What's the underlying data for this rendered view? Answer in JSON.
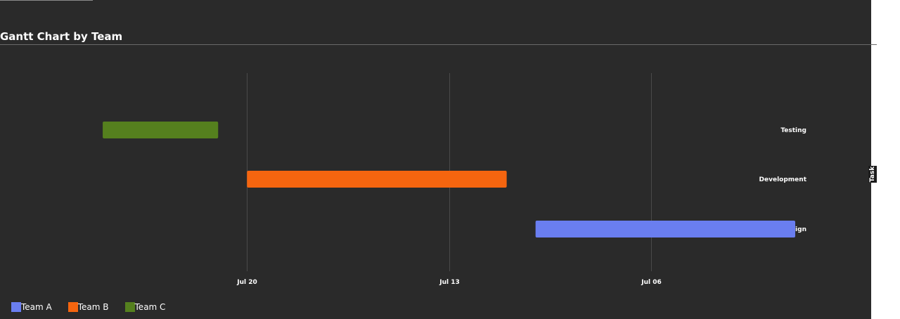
{
  "chart_data": {
    "type": "gantt",
    "title": "Gantt Chart by Team",
    "ylabel": "Task",
    "xlabel": "",
    "x_axis": "reversed-date",
    "grid": "vertical",
    "xlim": [
      "2025-07-01",
      "2025-07-27"
    ],
    "x_ticks": [
      {
        "date": "2025-07-20",
        "label": "Jul 20"
      },
      {
        "date": "2025-07-13",
        "label": "Jul 13"
      },
      {
        "date": "2025-07-06",
        "label": "Jul 06"
      }
    ],
    "categories": [
      "Testing",
      "Development",
      "Design"
    ],
    "tasks": [
      {
        "task": "Design",
        "team": "Team A",
        "start": "2025-07-01",
        "end": "2025-07-10"
      },
      {
        "task": "Development",
        "team": "Team B",
        "start": "2025-07-11",
        "end": "2025-07-20"
      },
      {
        "task": "Testing",
        "team": "Team C",
        "start": "2025-07-21",
        "end": "2025-07-25"
      }
    ],
    "legend": {
      "placement": "bottom-left",
      "entries": [
        {
          "name": "Team A",
          "color": "#6a7ef0"
        },
        {
          "name": "Team B",
          "color": "#f5650f"
        },
        {
          "name": "Team C",
          "color": "#55801e"
        }
      ]
    }
  }
}
